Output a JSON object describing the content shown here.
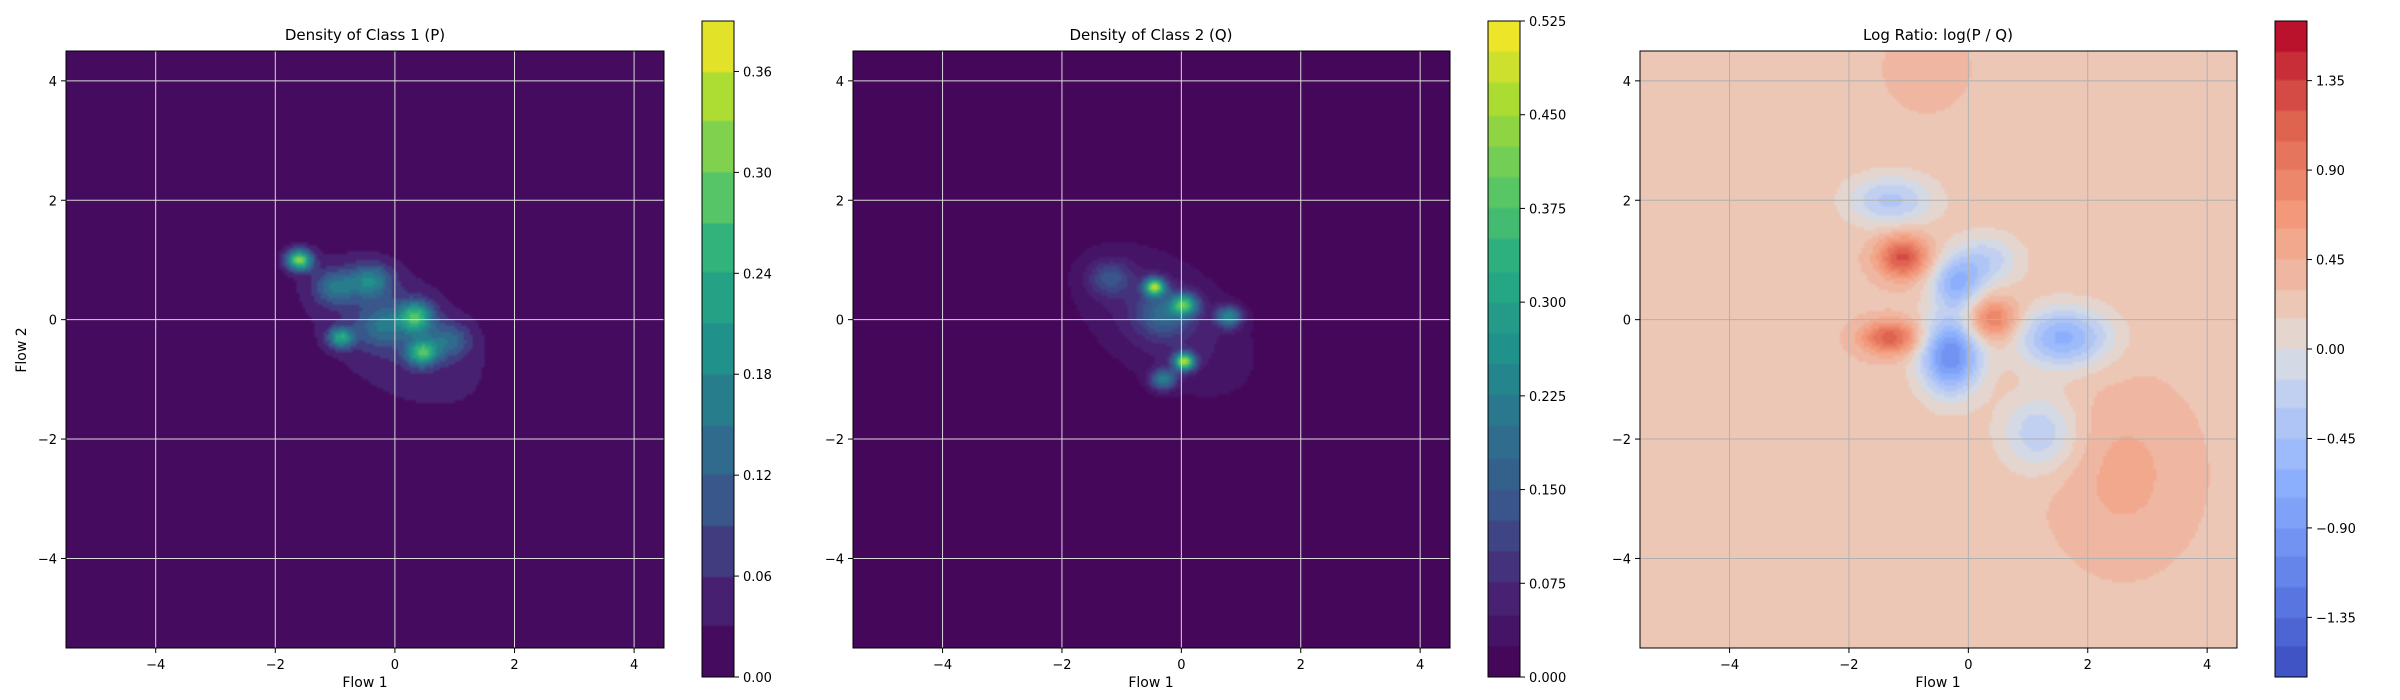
{
  "figure": {
    "background": "#ffffff"
  },
  "chart_data": [
    {
      "type": "heatmap",
      "title": "Density of Class 1 (P)",
      "xlabel": "Flow 1",
      "ylabel": "Flow 2",
      "xlim": [
        -5.5,
        4.5
      ],
      "ylim": [
        -5.5,
        4.5
      ],
      "xticks": [
        -4,
        -2,
        0,
        2,
        4
      ],
      "yticks": [
        -4,
        -2,
        0,
        2,
        4
      ],
      "grid": true,
      "colormap": "viridis",
      "colorbar": {
        "min": 0.0,
        "max": 0.39,
        "ticks": [
          "0.00",
          "0.06",
          "0.12",
          "0.18",
          "0.24",
          "0.30",
          "0.36"
        ],
        "tick_values": [
          0,
          0.06,
          0.12,
          0.18,
          0.24,
          0.3,
          0.36
        ],
        "levels": 13
      },
      "components": [
        {
          "x": 0.0,
          "y": -0.2,
          "sx": 1.4,
          "sy": 0.8,
          "rot": -35,
          "w": 0.06
        },
        {
          "x": -1.6,
          "y": 1.0,
          "sx": 0.15,
          "sy": 0.12,
          "rot": 0,
          "w": 0.3
        },
        {
          "x": -1.0,
          "y": 0.55,
          "sx": 0.25,
          "sy": 0.2,
          "rot": 0,
          "w": 0.12
        },
        {
          "x": -0.4,
          "y": 0.65,
          "sx": 0.25,
          "sy": 0.2,
          "rot": 0,
          "w": 0.14
        },
        {
          "x": 0.35,
          "y": 0.05,
          "sx": 0.2,
          "sy": 0.18,
          "rot": 0,
          "w": 0.22
        },
        {
          "x": 0.45,
          "y": -0.55,
          "sx": 0.18,
          "sy": 0.15,
          "rot": 0,
          "w": 0.22
        },
        {
          "x": -0.9,
          "y": -0.3,
          "sx": 0.15,
          "sy": 0.12,
          "rot": 0,
          "w": 0.2
        },
        {
          "x": -0.2,
          "y": -0.1,
          "sx": 0.3,
          "sy": 0.25,
          "rot": 0,
          "w": 0.1
        },
        {
          "x": 0.9,
          "y": -0.35,
          "sx": 0.25,
          "sy": 0.2,
          "rot": 0,
          "w": 0.1
        }
      ]
    },
    {
      "type": "heatmap",
      "title": "Density of Class 2 (Q)",
      "xlabel": "Flow 1",
      "ylabel": "",
      "xlim": [
        -5.5,
        4.5
      ],
      "ylim": [
        -5.5,
        4.5
      ],
      "xticks": [
        -4,
        -2,
        0,
        2,
        4
      ],
      "yticks": [
        -4,
        -2,
        0,
        2,
        4
      ],
      "grid": true,
      "colormap": "viridis",
      "colorbar": {
        "min": 0.0,
        "max": 0.525,
        "ticks": [
          "0.000",
          "0.075",
          "0.150",
          "0.225",
          "0.300",
          "0.375",
          "0.450",
          "0.525"
        ],
        "tick_values": [
          0,
          0.075,
          0.15,
          0.225,
          0.3,
          0.375,
          0.45,
          0.525
        ],
        "levels": 21
      },
      "components": [
        {
          "x": -0.3,
          "y": 0.0,
          "sx": 1.2,
          "sy": 0.7,
          "rot": -35,
          "w": 0.07
        },
        {
          "x": -0.45,
          "y": 0.55,
          "sx": 0.12,
          "sy": 0.1,
          "rot": 0,
          "w": 0.4
        },
        {
          "x": 0.05,
          "y": 0.25,
          "sx": 0.15,
          "sy": 0.12,
          "rot": 0,
          "w": 0.3
        },
        {
          "x": 0.05,
          "y": -0.7,
          "sx": 0.12,
          "sy": 0.1,
          "rot": 0,
          "w": 0.42
        },
        {
          "x": 0.8,
          "y": 0.05,
          "sx": 0.15,
          "sy": 0.12,
          "rot": 0,
          "w": 0.22
        },
        {
          "x": -0.3,
          "y": -1.0,
          "sx": 0.15,
          "sy": 0.12,
          "rot": 0,
          "w": 0.2
        },
        {
          "x": -1.2,
          "y": 0.7,
          "sx": 0.25,
          "sy": 0.2,
          "rot": 0,
          "w": 0.1
        },
        {
          "x": -0.3,
          "y": 0.1,
          "sx": 0.3,
          "sy": 0.25,
          "rot": 0,
          "w": 0.12
        }
      ]
    },
    {
      "type": "heatmap",
      "title": "Log Ratio: log(P / Q)",
      "xlabel": "Flow 1",
      "ylabel": "",
      "xlim": [
        -5.5,
        4.5
      ],
      "ylim": [
        -5.5,
        4.5
      ],
      "xticks": [
        -4,
        -2,
        0,
        2,
        4
      ],
      "yticks": [
        -4,
        -2,
        0,
        2,
        4
      ],
      "grid": true,
      "colormap": "coolwarm",
      "colorbar": {
        "min": -1.65,
        "max": 1.65,
        "ticks": [
          "−1.35",
          "−0.90",
          "−0.45",
          "0.00",
          "0.45",
          "0.90",
          "1.35"
        ],
        "tick_values": [
          -1.35,
          -0.9,
          -0.45,
          0.0,
          0.45,
          0.9,
          1.35
        ],
        "levels": 22
      },
      "background_value": 0.25,
      "components": [
        {
          "x": -1.1,
          "y": 1.05,
          "sx": 0.3,
          "sy": 0.25,
          "rot": 0,
          "w": 1.0
        },
        {
          "x": -1.3,
          "y": -0.3,
          "sx": 0.35,
          "sy": 0.2,
          "rot": 0,
          "w": 0.9
        },
        {
          "x": 0.4,
          "y": 0.0,
          "sx": 0.3,
          "sy": 0.25,
          "rot": 0,
          "w": 0.75
        },
        {
          "x": 2.6,
          "y": -2.6,
          "sx": 0.8,
          "sy": 1.0,
          "rot": 0,
          "w": 0.25
        },
        {
          "x": -0.3,
          "y": -0.6,
          "sx": 0.35,
          "sy": 0.45,
          "rot": 0,
          "w": -1.3
        },
        {
          "x": -0.2,
          "y": 0.6,
          "sx": 0.3,
          "sy": 0.3,
          "rot": 0,
          "w": -0.8
        },
        {
          "x": 1.6,
          "y": -0.3,
          "sx": 0.55,
          "sy": 0.35,
          "rot": 0,
          "w": -0.9
        },
        {
          "x": -1.3,
          "y": 2.0,
          "sx": 0.5,
          "sy": 0.3,
          "rot": 0,
          "w": -0.6
        },
        {
          "x": 1.2,
          "y": -1.9,
          "sx": 0.45,
          "sy": 0.45,
          "rot": 0,
          "w": -0.55
        },
        {
          "x": 0.3,
          "y": 1.0,
          "sx": 0.4,
          "sy": 0.3,
          "rot": 0,
          "w": -0.5
        },
        {
          "x": -0.7,
          "y": 4.2,
          "sx": 0.5,
          "sy": 0.5,
          "rot": 0,
          "w": 0.15
        }
      ]
    }
  ]
}
